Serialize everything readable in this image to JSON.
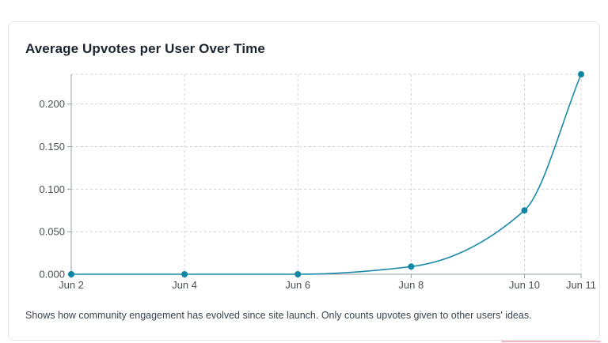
{
  "card": {
    "title": "Average Upvotes per User Over Time",
    "caption": "Shows how community engagement has evolved since site launch. Only counts upvotes given to other users' ideas."
  },
  "colors": {
    "line": "#1a8aa7",
    "point": "#0f86a3",
    "grid": "#cfd3d8",
    "axis": "#9aa0a6",
    "text": "#4a4f57"
  },
  "chart_data": {
    "type": "line",
    "x": [
      "Jun 2",
      "Jun 4",
      "Jun 6",
      "Jun 8",
      "Jun 10",
      "Jun 11"
    ],
    "x_days": [
      2,
      4,
      6,
      8,
      10,
      11
    ],
    "values": [
      0.0,
      0.0,
      0.0,
      0.009,
      0.075,
      0.235
    ],
    "x_ticks": [
      "Jun 2",
      "Jun 4",
      "Jun 6",
      "Jun 8",
      "Jun 10",
      "Jun 11"
    ],
    "y_ticks": [
      "0.000",
      "0.050",
      "0.100",
      "0.150",
      "0.200"
    ],
    "y_tick_values": [
      0,
      0.05,
      0.1,
      0.15,
      0.2
    ],
    "ylim": [
      0,
      0.235
    ],
    "grid": true,
    "smooth": true
  }
}
